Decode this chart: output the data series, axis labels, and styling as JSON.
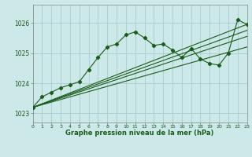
{
  "background_color": "#cce8e8",
  "plot_bg_color": "#cce8e8",
  "grid_color": "#aacccc",
  "line_color": "#1a5c1a",
  "xlabel": "Graphe pression niveau de la mer (hPa)",
  "xlim": [
    0,
    23
  ],
  "ylim": [
    1022.7,
    1026.6
  ],
  "yticks": [
    1023,
    1024,
    1025,
    1026
  ],
  "xticks": [
    0,
    1,
    2,
    3,
    4,
    5,
    6,
    7,
    8,
    9,
    10,
    11,
    12,
    13,
    14,
    15,
    16,
    17,
    18,
    19,
    20,
    21,
    22,
    23
  ],
  "series1": [
    [
      0,
      1023.2
    ],
    [
      1,
      1023.55
    ],
    [
      2,
      1023.7
    ],
    [
      3,
      1023.85
    ],
    [
      4,
      1023.95
    ],
    [
      5,
      1024.05
    ],
    [
      6,
      1024.45
    ],
    [
      7,
      1024.85
    ],
    [
      8,
      1025.2
    ],
    [
      9,
      1025.3
    ],
    [
      10,
      1025.6
    ],
    [
      11,
      1025.7
    ],
    [
      12,
      1025.5
    ],
    [
      13,
      1025.25
    ],
    [
      14,
      1025.3
    ],
    [
      15,
      1025.1
    ],
    [
      16,
      1024.85
    ],
    [
      17,
      1025.15
    ],
    [
      18,
      1024.8
    ],
    [
      19,
      1024.65
    ],
    [
      20,
      1024.6
    ],
    [
      21,
      1025.0
    ],
    [
      22,
      1026.1
    ],
    [
      23,
      1025.95
    ]
  ],
  "series2": [
    [
      0,
      1023.2
    ],
    [
      23,
      1025.95
    ]
  ],
  "series3": [
    [
      0,
      1023.2
    ],
    [
      23,
      1025.55
    ]
  ],
  "series4": [
    [
      0,
      1023.2
    ],
    [
      23,
      1025.75
    ]
  ],
  "series5": [
    [
      0,
      1023.2
    ],
    [
      23,
      1025.2
    ]
  ]
}
